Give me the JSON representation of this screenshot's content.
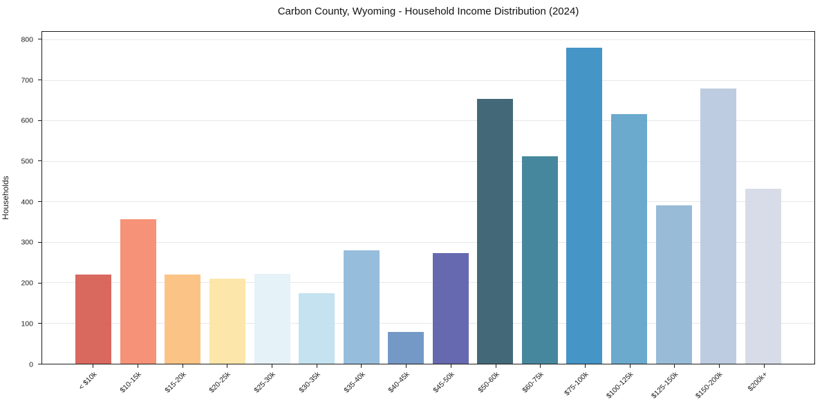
{
  "figure": {
    "background": "#ffffff",
    "plot_border_color": "#1a1a1a",
    "gridline_color": "#e7e7e7",
    "text_color": "#1a1a1a"
  },
  "chart_data": {
    "type": "bar",
    "title": "Carbon County, Wyoming - Household Income Distribution (2024)",
    "xlabel": "",
    "ylabel": "Households",
    "ylim": [
      0,
      821
    ],
    "yticks": [
      0,
      100,
      200,
      300,
      400,
      500,
      600,
      700,
      800
    ],
    "grid": "horizontal",
    "legend_position": "none",
    "x_tick_rotation": 45,
    "categories": [
      "< $10k",
      "$10-15k",
      "$15-20k",
      "$20-25k",
      "$25-30k",
      "$30-35k",
      "$35-40k",
      "$40-45k",
      "$45-50k",
      "$50-60k",
      "$60-75k",
      "$75-100k",
      "$100-125k",
      "$125-150k",
      "$150-200k",
      "$200k+"
    ],
    "values": [
      220,
      358,
      220,
      210,
      222,
      174,
      280,
      78,
      273,
      655,
      513,
      782,
      618,
      392,
      680,
      432
    ],
    "bar_colors": [
      "#d65c53",
      "#f58a6e",
      "#fcbe7d",
      "#fde4a4",
      "#e3f1f8",
      "#c0e0ee",
      "#8fb8da",
      "#6b91c3",
      "#5a5ea9",
      "#355e6e",
      "#387e96",
      "#378dc3",
      "#60a3c9",
      "#90b6d4",
      "#b8c8de",
      "#d5d8e6"
    ]
  }
}
